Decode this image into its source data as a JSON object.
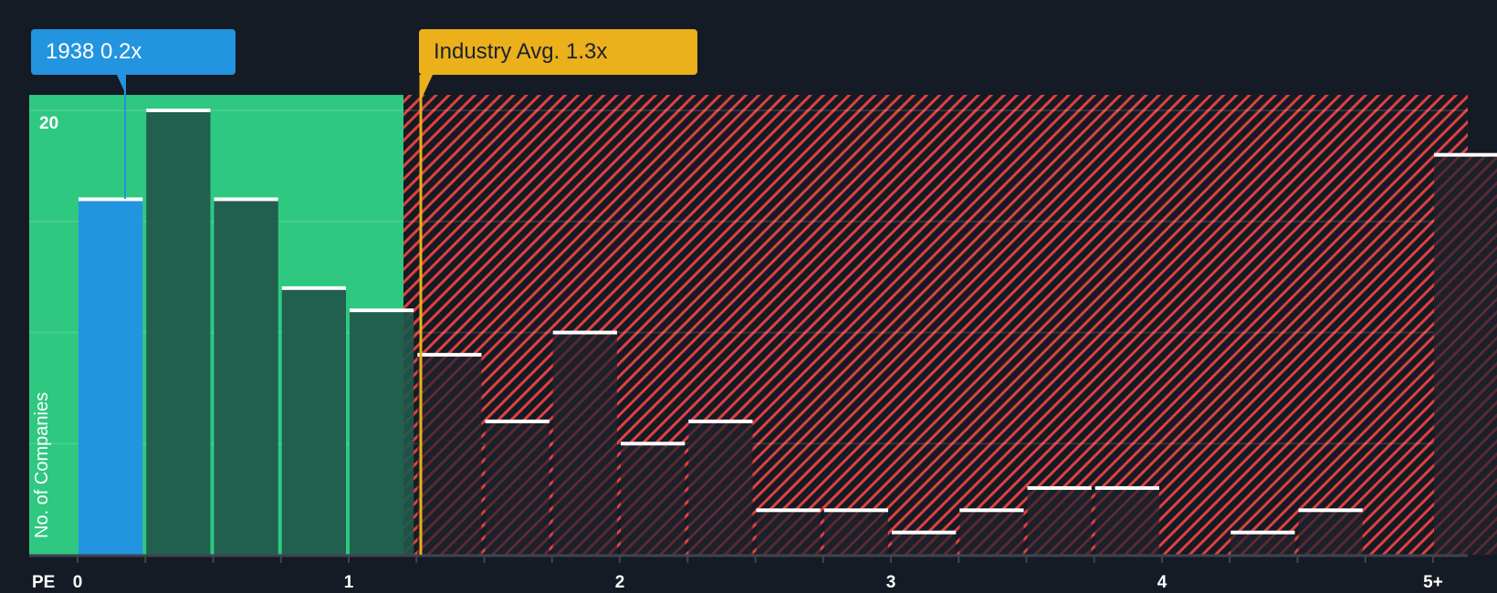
{
  "labels": {
    "company": "1938 0.2x",
    "industry": "Industry Avg. 1.3x",
    "y_axis": "No. of Companies",
    "x_axis_prefix": "PE",
    "y_tick_top": "20"
  },
  "colors": {
    "background": "#151b24",
    "fair_zone": "#2ec880",
    "company_bar": "#2394df",
    "industry_marker": "#ebb01a",
    "overvalued_hatch": "#e2403f",
    "bar_fill_green": "#21574a",
    "bar_fill_dark": "#1b202a",
    "bar_cap": "#ffffff"
  },
  "chart_data": {
    "type": "bar",
    "title": "",
    "xlabel": "PE",
    "ylabel": "No. of Companies",
    "x_tick_labels": [
      "0",
      "1",
      "2",
      "3",
      "4",
      "5+"
    ],
    "bin_width": 0.25,
    "categories": [
      "0-0.25",
      "0.25-0.5",
      "0.5-0.75",
      "0.75-1.0",
      "1.0-1.25",
      "1.25-1.5",
      "1.5-1.75",
      "1.75-2.0",
      "2.0-2.25",
      "2.25-2.5",
      "2.5-2.75",
      "2.75-3.0",
      "3.0-3.25",
      "3.25-3.5",
      "3.5-3.75",
      "3.75-4.0",
      "4.0-4.25",
      "4.25-4.5",
      "4.5-4.75",
      "4.75-5.0",
      "5+"
    ],
    "values": [
      16,
      20,
      16,
      12,
      11,
      9,
      6,
      10,
      5,
      6,
      2,
      2,
      1,
      2,
      3,
      3,
      0,
      1,
      2,
      0,
      18
    ],
    "ylim": [
      0,
      20
    ],
    "y_gridlines": [
      0,
      5,
      10,
      15,
      20
    ],
    "company_value": 0.2,
    "company_label": "1938 0.2x",
    "industry_avg": 1.3,
    "industry_label": "Industry Avg. 1.3x",
    "fair_zone_max": 1.2,
    "highlighted_bin": 0,
    "grid": true,
    "legend": "none"
  }
}
